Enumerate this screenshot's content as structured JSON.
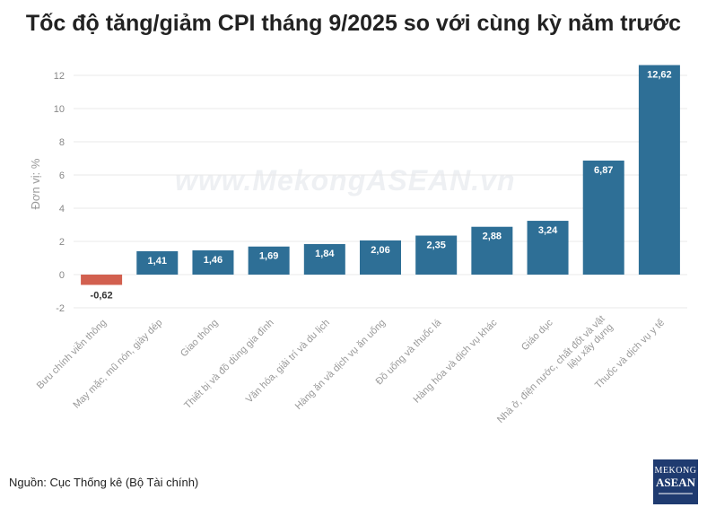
{
  "chart_data": {
    "type": "bar",
    "title": "Tốc độ tăng/giảm CPI tháng 9/2025 so với cùng kỳ năm trước",
    "ylabel": "Đơn vị: %",
    "xlabel": "",
    "ylim": [
      -2,
      13
    ],
    "yticks": [
      -2,
      0,
      2,
      4,
      6,
      8,
      10,
      12
    ],
    "grid": true,
    "categories": [
      "Bưu chính viễn thông",
      "May mặc, mũ nón, giày dép",
      "Giao thông",
      "Thiết bị và đồ dùng gia đình",
      "Văn hóa, giải trí và du lịch",
      "Hàng ăn và dịch vụ ăn uống",
      "Đồ uống và thuốc lá",
      "Hàng hóa và dịch vụ khác",
      "Giáo dục",
      "Nhà ở, điện nước, chất đốt và vật liệu xây dựng",
      "Thuốc và dịch vụ y tế"
    ],
    "values": [
      -0.62,
      1.41,
      1.46,
      1.69,
      1.84,
      2.06,
      2.35,
      2.88,
      3.24,
      6.87,
      12.62
    ],
    "value_labels": [
      "-0,62",
      "1,41",
      "1,46",
      "1,69",
      "1,84",
      "2,06",
      "2,35",
      "2,88",
      "3,24",
      "6,87",
      "12,62"
    ],
    "colors": {
      "positive": "#2e6f96",
      "negative": "#d2604f"
    }
  },
  "source": "Nguồn: Cục Thống kê (Bộ Tài chính)",
  "watermark": "www.MekongASEAN.vn",
  "logo": {
    "line1": "MEKONG",
    "line2": "ASEAN"
  }
}
